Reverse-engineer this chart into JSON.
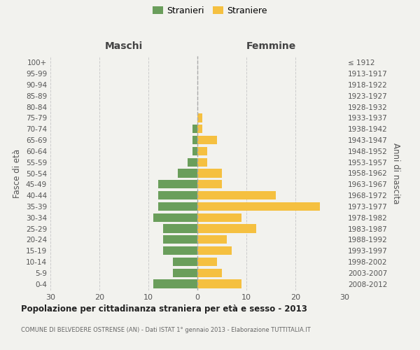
{
  "age_groups": [
    "0-4",
    "5-9",
    "10-14",
    "15-19",
    "20-24",
    "25-29",
    "30-34",
    "35-39",
    "40-44",
    "45-49",
    "50-54",
    "55-59",
    "60-64",
    "65-69",
    "70-74",
    "75-79",
    "80-84",
    "85-89",
    "90-94",
    "95-99",
    "100+"
  ],
  "birth_years": [
    "2008-2012",
    "2003-2007",
    "1998-2002",
    "1993-1997",
    "1988-1992",
    "1983-1987",
    "1978-1982",
    "1973-1977",
    "1968-1972",
    "1963-1967",
    "1958-1962",
    "1953-1957",
    "1948-1952",
    "1943-1947",
    "1938-1942",
    "1933-1937",
    "1928-1932",
    "1923-1927",
    "1918-1922",
    "1913-1917",
    "≤ 1912"
  ],
  "maschi": [
    9,
    5,
    5,
    7,
    7,
    7,
    9,
    8,
    8,
    8,
    4,
    2,
    1,
    1,
    1,
    0,
    0,
    0,
    0,
    0,
    0
  ],
  "femmine": [
    9,
    5,
    4,
    7,
    6,
    12,
    9,
    25,
    16,
    5,
    5,
    2,
    2,
    4,
    1,
    1,
    0,
    0,
    0,
    0,
    0
  ],
  "color_maschi": "#6a9e5b",
  "color_femmine": "#f5c040",
  "title": "Popolazione per cittadinanza straniera per età e sesso - 2013",
  "subtitle": "COMUNE DI BELVEDERE OSTRENSE (AN) - Dati ISTAT 1° gennaio 2013 - Elaborazione TUTTITALIA.IT",
  "xlabel_left": "Maschi",
  "xlabel_right": "Femmine",
  "ylabel_left": "Fasce di età",
  "ylabel_right": "Anni di nascita",
  "legend_maschi": "Stranieri",
  "legend_femmine": "Straniere",
  "xlim": 30,
  "background_color": "#f2f2ee",
  "grid_color": "#cccccc"
}
